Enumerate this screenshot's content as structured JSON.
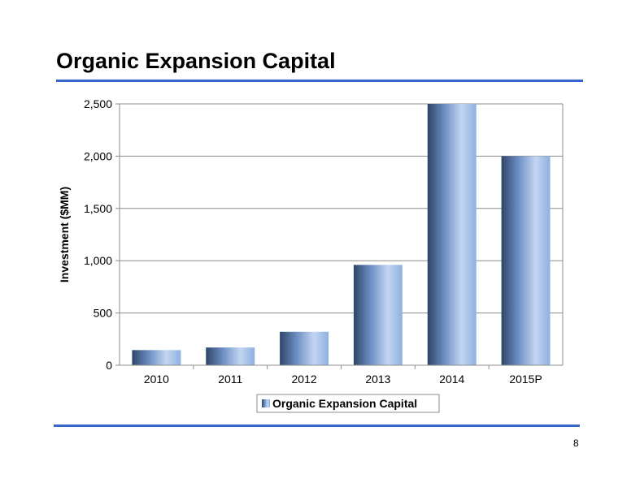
{
  "slide": {
    "title": "Organic Expansion Capital",
    "page_number": "8"
  },
  "colors": {
    "rule": "#3566c8",
    "bar_dark": "#2e4568",
    "bar_mid": "#8fb0e0",
    "bar_light": "#c3d6f2",
    "gridline": "#8c8c8c"
  },
  "chart_data": {
    "type": "bar",
    "title": "",
    "xlabel": "",
    "ylabel": "Investment ($MM)",
    "categories": [
      "2010",
      "2011",
      "2012",
      "2013",
      "2014",
      "2015P"
    ],
    "series": [
      {
        "name": "Organic Expansion Capital",
        "values": [
          145,
          170,
          320,
          960,
          2500,
          2000
        ]
      }
    ],
    "ylim": [
      0,
      2500
    ],
    "yticks": [
      0,
      500,
      1000,
      1500,
      2000,
      2500
    ],
    "ytick_labels": [
      "0",
      "500",
      "1,000",
      "1,500",
      "2,000",
      "2,500"
    ],
    "grid": true,
    "legend_position": "bottom"
  }
}
